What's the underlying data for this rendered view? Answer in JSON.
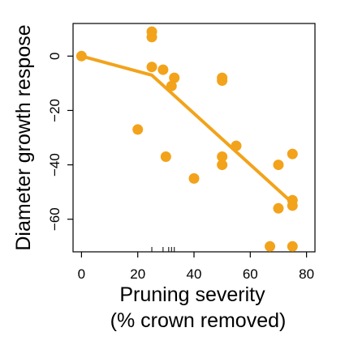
{
  "chart_data": {
    "type": "scatter",
    "title": "",
    "xlabel": "Pruning severity",
    "xlabel_line2": "(% crown removed)",
    "ylabel": "Diameter growth respose",
    "xlim": [
      -3,
      83
    ],
    "ylim": [
      -72,
      12
    ],
    "x_ticks": [
      0,
      20,
      40,
      60,
      80
    ],
    "x_tick_labels": [
      "0",
      "20",
      "40",
      "60",
      "80"
    ],
    "y_ticks": [
      0,
      -20,
      -40,
      -60
    ],
    "y_tick_labels": [
      "0",
      "−20",
      "−40",
      "−60"
    ],
    "rug_x": [
      25,
      29,
      31,
      32,
      33
    ],
    "grid": false,
    "legend": "none",
    "point_color": "#F2A31B",
    "line_color": "#F2A31B",
    "series": [
      {
        "values": [
          {
            "x": 0,
            "y": 0
          },
          {
            "x": 20,
            "y": -27
          },
          {
            "x": 25,
            "y": 9
          },
          {
            "x": 25,
            "y": 7
          },
          {
            "x": 25,
            "y": -4
          },
          {
            "x": 29,
            "y": -5
          },
          {
            "x": 30,
            "y": -37
          },
          {
            "x": 32,
            "y": -11
          },
          {
            "x": 33,
            "y": -8
          },
          {
            "x": 40,
            "y": -45
          },
          {
            "x": 50,
            "y": -8
          },
          {
            "x": 50,
            "y": -9
          },
          {
            "x": 50,
            "y": -37
          },
          {
            "x": 50,
            "y": -40
          },
          {
            "x": 55,
            "y": -33
          },
          {
            "x": 67,
            "y": -70
          },
          {
            "x": 70,
            "y": -40
          },
          {
            "x": 70,
            "y": -56
          },
          {
            "x": 75,
            "y": -36
          },
          {
            "x": 75,
            "y": -53
          },
          {
            "x": 75,
            "y": -55
          },
          {
            "x": 75,
            "y": -70
          }
        ]
      }
    ],
    "fit_line": [
      {
        "x": 0,
        "y": 0
      },
      {
        "x": 25,
        "y": -7
      },
      {
        "x": 75,
        "y": -54
      }
    ]
  }
}
